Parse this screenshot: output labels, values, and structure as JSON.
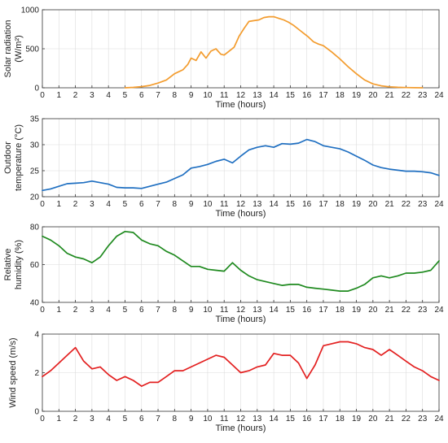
{
  "chart_data": [
    {
      "type": "line",
      "ylabel": "Solar radiation (W/m²)",
      "ylabel_lines": [
        "Solar radiation",
        "(W/m²)"
      ],
      "xlabel": "Time (hours)",
      "xlim": [
        0,
        24
      ],
      "ylim": [
        0,
        1000
      ],
      "yticks": [
        0,
        500,
        1000
      ],
      "xticks": [
        0,
        1,
        2,
        3,
        4,
        5,
        6,
        7,
        8,
        9,
        10,
        11,
        12,
        13,
        14,
        15,
        16,
        17,
        18,
        19,
        20,
        21,
        22,
        23,
        24
      ],
      "grid": true,
      "series": [
        {
          "color": "#f39c2e",
          "x": [
            5,
            5.5,
            6,
            6.5,
            7,
            7.5,
            8,
            8.5,
            8.8,
            9,
            9.3,
            9.6,
            9.9,
            10.2,
            10.5,
            10.8,
            11,
            11.3,
            11.6,
            11.9,
            12.2,
            12.5,
            12.8,
            13.1,
            13.4,
            13.7,
            14,
            14.3,
            14.6,
            14.9,
            15.2,
            15.5,
            15.8,
            16.1,
            16.4,
            16.7,
            17,
            17.5,
            18,
            18.5,
            19,
            19.5,
            20,
            20.5,
            21,
            21.5,
            22,
            22.5,
            23
          ],
          "y": [
            0,
            5,
            15,
            30,
            60,
            100,
            180,
            230,
            300,
            380,
            350,
            460,
            380,
            470,
            500,
            430,
            420,
            470,
            520,
            660,
            760,
            850,
            860,
            870,
            900,
            910,
            910,
            890,
            870,
            840,
            800,
            750,
            700,
            650,
            590,
            560,
            540,
            460,
            370,
            270,
            180,
            100,
            50,
            25,
            12,
            6,
            3,
            1,
            0
          ]
        }
      ]
    },
    {
      "type": "line",
      "ylabel": "Outdoor temperature (°C)",
      "ylabel_lines": [
        "Outdoor",
        "temperature (°C)"
      ],
      "xlabel": "Time (hours)",
      "xlim": [
        0,
        24
      ],
      "ylim": [
        20,
        35
      ],
      "yticks": [
        20,
        25,
        30,
        35
      ],
      "xticks": [
        0,
        1,
        2,
        3,
        4,
        5,
        6,
        7,
        8,
        9,
        10,
        11,
        12,
        13,
        14,
        15,
        16,
        17,
        18,
        19,
        20,
        21,
        22,
        23,
        24
      ],
      "grid": true,
      "series": [
        {
          "color": "#1f6fc1",
          "x": [
            0,
            0.5,
            1,
            1.5,
            2,
            2.5,
            3,
            3.5,
            4,
            4.5,
            5,
            5.5,
            6,
            6.5,
            7,
            7.5,
            8,
            8.5,
            9,
            9.5,
            10,
            10.5,
            11,
            11.5,
            12,
            12.5,
            13,
            13.5,
            14,
            14.5,
            15,
            15.5,
            16,
            16.5,
            17,
            17.5,
            18,
            18.5,
            19,
            19.5,
            20,
            20.5,
            21,
            21.5,
            22,
            22.5,
            23,
            23.5,
            24
          ],
          "y": [
            21.2,
            21.5,
            22,
            22.5,
            22.6,
            22.7,
            23,
            22.7,
            22.4,
            21.8,
            21.7,
            21.7,
            21.6,
            22,
            22.4,
            22.8,
            23.5,
            24.2,
            25.5,
            25.8,
            26.2,
            26.8,
            27.2,
            26.5,
            27.8,
            29,
            29.5,
            29.8,
            29.5,
            30.2,
            30.1,
            30.3,
            31,
            30.6,
            29.8,
            29.5,
            29.2,
            28.6,
            27.8,
            27,
            26.1,
            25.6,
            25.3,
            25.1,
            24.9,
            24.9,
            24.8,
            24.6,
            24.1
          ]
        }
      ]
    },
    {
      "type": "line",
      "ylabel": "Relative humidity (%)",
      "ylabel_lines": [
        "Relative",
        "humidity (%)"
      ],
      "xlabel": "Time (hours)",
      "xlim": [
        0,
        24
      ],
      "ylim": [
        40,
        80
      ],
      "yticks": [
        40,
        60,
        80
      ],
      "xticks": [
        0,
        1,
        2,
        3,
        4,
        5,
        6,
        7,
        8,
        9,
        10,
        11,
        12,
        13,
        14,
        15,
        16,
        17,
        18,
        19,
        20,
        21,
        22,
        23,
        24
      ],
      "grid": true,
      "series": [
        {
          "color": "#1f8a1f",
          "x": [
            0,
            0.5,
            1,
            1.5,
            2,
            2.5,
            3,
            3.5,
            4,
            4.5,
            5,
            5.5,
            6,
            6.5,
            7,
            7.5,
            8,
            8.5,
            9,
            9.5,
            10,
            10.5,
            11,
            11.5,
            12,
            12.5,
            13,
            13.5,
            14,
            14.5,
            15,
            15.5,
            16,
            16.5,
            17,
            17.5,
            18,
            18.5,
            19,
            19.5,
            20,
            20.5,
            21,
            21.5,
            22,
            22.5,
            23,
            23.5,
            24
          ],
          "y": [
            75,
            73,
            70,
            66,
            64,
            63,
            61,
            64,
            70,
            75,
            77.5,
            77,
            73,
            71,
            70,
            67,
            65,
            62,
            59,
            59,
            57.5,
            57,
            56.5,
            61,
            57,
            54,
            52,
            51,
            50,
            49,
            49.5,
            49.5,
            48,
            47.5,
            47,
            46.5,
            46,
            46,
            47.5,
            49.5,
            53,
            54,
            53,
            54,
            55.5,
            55.5,
            56,
            57,
            62
          ]
        }
      ]
    },
    {
      "type": "line",
      "ylabel": "Wind speed (m/s)",
      "ylabel_lines": [
        "Wind speed (m/s)"
      ],
      "xlabel": "Time (hours)",
      "xlim": [
        0,
        24
      ],
      "ylim": [
        0,
        4
      ],
      "yticks": [
        0,
        2,
        4
      ],
      "xticks": [
        0,
        1,
        2,
        3,
        4,
        5,
        6,
        7,
        8,
        9,
        10,
        11,
        12,
        13,
        14,
        15,
        16,
        17,
        18,
        19,
        20,
        21,
        22,
        23,
        24
      ],
      "grid": true,
      "series": [
        {
          "color": "#e32020",
          "x": [
            0,
            0.5,
            1,
            1.5,
            2,
            2.5,
            3,
            3.5,
            4,
            4.5,
            5,
            5.5,
            6,
            6.5,
            7,
            7.5,
            8,
            8.5,
            9,
            9.5,
            10,
            10.5,
            11,
            11.5,
            12,
            12.5,
            13,
            13.5,
            14,
            14.5,
            15,
            15.5,
            16,
            16.5,
            17,
            17.5,
            18,
            18.5,
            19,
            19.5,
            20,
            20.5,
            21,
            21.5,
            22,
            22.5,
            23,
            23.5,
            24
          ],
          "y": [
            1.8,
            2.1,
            2.5,
            2.9,
            3.3,
            2.6,
            2.2,
            2.3,
            1.9,
            1.6,
            1.8,
            1.6,
            1.3,
            1.5,
            1.5,
            1.8,
            2.1,
            2.1,
            2.3,
            2.5,
            2.7,
            2.9,
            2.8,
            2.4,
            2.0,
            2.1,
            2.3,
            2.4,
            3.0,
            2.9,
            2.9,
            2.5,
            1.7,
            2.4,
            3.4,
            3.5,
            3.6,
            3.6,
            3.5,
            3.3,
            3.2,
            2.9,
            3.2,
            2.9,
            2.6,
            2.3,
            2.1,
            1.8,
            1.6
          ]
        }
      ]
    }
  ]
}
